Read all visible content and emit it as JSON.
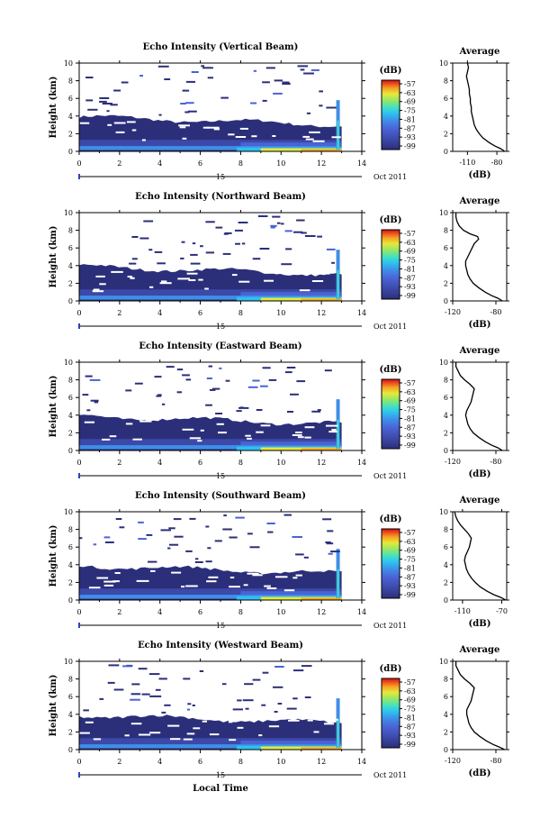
{
  "chart_data": {
    "type": "heatmap",
    "panels": [
      {
        "title": "Echo Intensity (Vertical Beam)",
        "avg_xticks": [
          "-110",
          "-80"
        ],
        "avg_xlim": [
          -125,
          -70
        ],
        "profile": [
          [
            0,
            -72
          ],
          [
            0.3,
            -76
          ],
          [
            0.6,
            -82
          ],
          [
            1,
            -88
          ],
          [
            1.5,
            -94
          ],
          [
            2,
            -98
          ],
          [
            2.5,
            -101
          ],
          [
            3,
            -103
          ],
          [
            3.5,
            -104
          ],
          [
            4,
            -105
          ],
          [
            4.5,
            -106
          ],
          [
            5,
            -106
          ],
          [
            5.5,
            -107
          ],
          [
            6,
            -107
          ],
          [
            6.5,
            -108
          ],
          [
            7,
            -108
          ],
          [
            7.5,
            -109
          ],
          [
            8,
            -110
          ],
          [
            8.5,
            -111
          ],
          [
            9,
            -110
          ],
          [
            9.5,
            -109
          ],
          [
            10,
            -110
          ]
        ]
      },
      {
        "title": "Echo Intensity (Northward Beam)",
        "avg_xticks": [
          "-120",
          "-80"
        ],
        "avg_xlim": [
          -120,
          -70
        ],
        "profile": [
          [
            0,
            -74
          ],
          [
            0.3,
            -78
          ],
          [
            0.6,
            -84
          ],
          [
            1,
            -90
          ],
          [
            1.5,
            -96
          ],
          [
            2,
            -101
          ],
          [
            2.5,
            -104
          ],
          [
            3,
            -106
          ],
          [
            3.5,
            -107
          ],
          [
            4,
            -108
          ],
          [
            4.5,
            -108
          ],
          [
            5,
            -106
          ],
          [
            5.5,
            -104
          ],
          [
            6,
            -102
          ],
          [
            6.5,
            -100
          ],
          [
            7,
            -96
          ],
          [
            7.3,
            -97
          ],
          [
            7.6,
            -104
          ],
          [
            8,
            -110
          ],
          [
            8.5,
            -114
          ],
          [
            9,
            -116
          ],
          [
            9.5,
            -117
          ],
          [
            10,
            -117
          ]
        ]
      },
      {
        "title": "Echo Intensity (Eastward Beam)",
        "avg_xticks": [
          "-120",
          "-80"
        ],
        "avg_xlim": [
          -120,
          -70
        ],
        "profile": [
          [
            0,
            -74
          ],
          [
            0.3,
            -78
          ],
          [
            0.6,
            -84
          ],
          [
            1,
            -90
          ],
          [
            1.5,
            -96
          ],
          [
            2,
            -101
          ],
          [
            2.5,
            -104
          ],
          [
            3,
            -106
          ],
          [
            3.5,
            -107
          ],
          [
            4,
            -108
          ],
          [
            4.5,
            -107
          ],
          [
            5,
            -105
          ],
          [
            5.5,
            -103
          ],
          [
            6,
            -102
          ],
          [
            6.5,
            -101
          ],
          [
            7,
            -100
          ],
          [
            7.5,
            -104
          ],
          [
            8,
            -109
          ],
          [
            8.5,
            -113
          ],
          [
            9,
            -115
          ],
          [
            9.5,
            -117
          ],
          [
            10,
            -117
          ]
        ]
      },
      {
        "title": "Echo Intensity (Southward Beam)",
        "avg_xticks": [
          "-110",
          "-70"
        ],
        "avg_xlim": [
          -120,
          -65
        ],
        "profile": [
          [
            0,
            -66
          ],
          [
            0.3,
            -71
          ],
          [
            0.6,
            -78
          ],
          [
            1,
            -85
          ],
          [
            1.5,
            -92
          ],
          [
            2,
            -97
          ],
          [
            2.5,
            -101
          ],
          [
            3,
            -104
          ],
          [
            3.5,
            -106
          ],
          [
            4,
            -107
          ],
          [
            4.5,
            -108
          ],
          [
            5,
            -107
          ],
          [
            5.5,
            -105
          ],
          [
            6,
            -103
          ],
          [
            6.5,
            -102
          ],
          [
            7,
            -101
          ],
          [
            7.5,
            -104
          ],
          [
            8,
            -108
          ],
          [
            8.5,
            -112
          ],
          [
            9,
            -115
          ],
          [
            9.5,
            -117
          ],
          [
            10,
            -118
          ]
        ]
      },
      {
        "title": "Echo Intensity (Westward Beam)",
        "avg_xticks": [
          "-120",
          "-80"
        ],
        "avg_xlim": [
          -120,
          -70
        ],
        "profile": [
          [
            0,
            -72
          ],
          [
            0.3,
            -77
          ],
          [
            0.6,
            -83
          ],
          [
            1,
            -89
          ],
          [
            1.5,
            -95
          ],
          [
            2,
            -100
          ],
          [
            2.5,
            -103
          ],
          [
            3,
            -105
          ],
          [
            3.5,
            -106
          ],
          [
            4,
            -107
          ],
          [
            4.5,
            -107
          ],
          [
            5,
            -105
          ],
          [
            5.5,
            -103
          ],
          [
            6,
            -102
          ],
          [
            6.5,
            -101
          ],
          [
            7,
            -100
          ],
          [
            7.5,
            -104
          ],
          [
            8,
            -109
          ],
          [
            8.5,
            -113
          ],
          [
            9,
            -115
          ],
          [
            9.5,
            -117
          ],
          [
            10,
            -117
          ]
        ]
      }
    ],
    "xticks": [
      "0",
      "2",
      "4",
      "6",
      "8",
      "10",
      "12",
      "14"
    ],
    "xlim": [
      0,
      14
    ],
    "yticks": [
      "0",
      "2",
      "4",
      "6",
      "8",
      "10"
    ],
    "ylim": [
      0,
      10
    ],
    "ylabel": "Height (km)",
    "xlabel": "Local Time",
    "date_day": "15",
    "date_suffix": "Oct 2011",
    "colorbar_label": "(dB)",
    "colorbar_ticks": [
      "-57",
      "-63",
      "-69",
      "-75",
      "-81",
      "-87",
      "-93",
      "-99"
    ],
    "avg_title": "Average",
    "avg_xlabel": "(dB)",
    "colors": [
      "#2b2f7a",
      "#3d49a8",
      "#4a63d6",
      "#3f8ee8",
      "#2fc0f0",
      "#3ee0c8",
      "#8ee86a",
      "#e8e83a",
      "#f5a623",
      "#f04a1e",
      "#c81414"
    ]
  }
}
